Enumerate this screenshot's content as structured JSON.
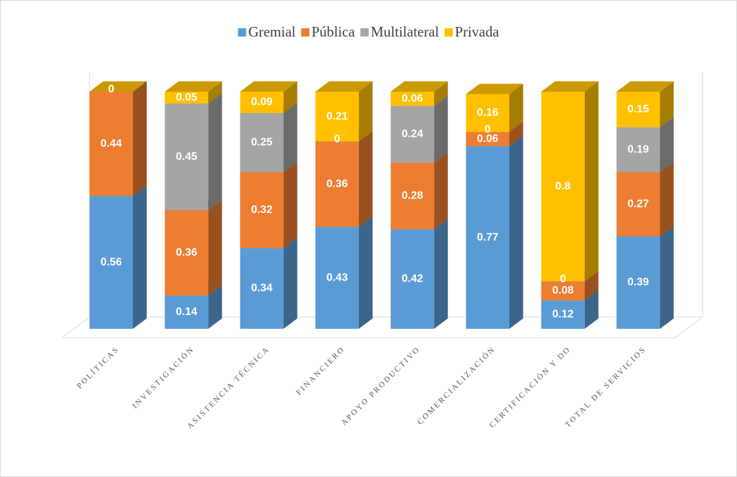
{
  "chart_data": {
    "type": "bar3d_stacked",
    "categories": [
      "POLÍTICAS",
      "INVESTIGACIÓN",
      "ASISTENCIA TÉCNICA",
      "FINANCIERO",
      "APOYO PRODUCTIVO",
      "COMERCIALIZACIÓN",
      "CERTIFICACIÓN Y DO",
      "TOTAL DE SERVICIOS"
    ],
    "series": [
      {
        "name": "Gremial",
        "color": "#5b9bd5",
        "values": [
          0.56,
          0.14,
          0.34,
          0.43,
          0.42,
          0.77,
          0.12,
          0.39
        ]
      },
      {
        "name": "Pública",
        "color": "#ed7d31",
        "values": [
          0.44,
          0.36,
          0.32,
          0.36,
          0.28,
          0.06,
          0.08,
          0.27
        ]
      },
      {
        "name": "Multilateral",
        "color": "#a5a5a5",
        "values": [
          null,
          0.45,
          0.25,
          0,
          0.24,
          0,
          0,
          0.19
        ]
      },
      {
        "name": "Privada",
        "color": "#ffc000",
        "values": [
          0,
          0.05,
          0.09,
          0.21,
          0.06,
          0.16,
          0.8,
          0.15
        ]
      }
    ],
    "legend": "top"
  }
}
